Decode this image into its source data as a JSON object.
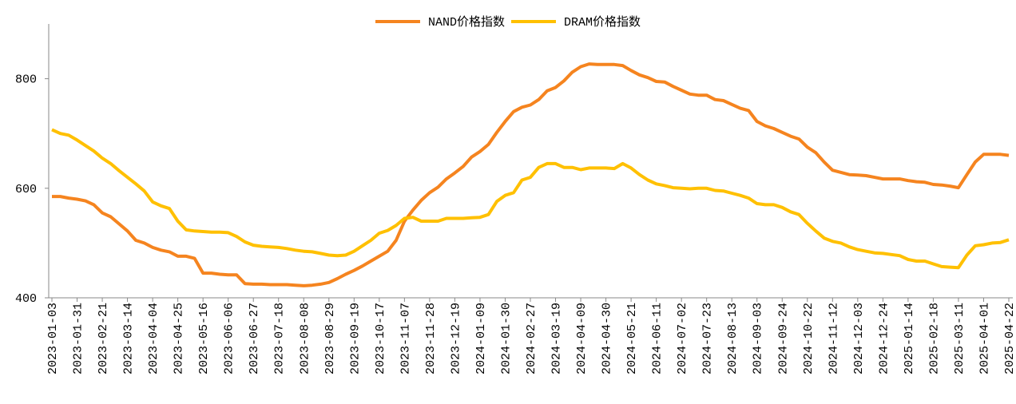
{
  "chart_data": {
    "type": "line",
    "categories": [
      "2023-01-03",
      null,
      null,
      "2023-01-31",
      null,
      null,
      "2023-02-21",
      null,
      null,
      "2023-03-14",
      null,
      null,
      "2023-04-04",
      null,
      null,
      "2023-04-25",
      null,
      null,
      "2023-05-16",
      null,
      null,
      "2023-06-06",
      null,
      null,
      "2023-06-27",
      null,
      null,
      "2023-07-18",
      null,
      null,
      "2023-08-08",
      null,
      null,
      "2023-08-29",
      null,
      null,
      "2023-09-19",
      null,
      null,
      "2023-10-17",
      null,
      null,
      "2023-11-07",
      null,
      null,
      "2023-11-28",
      null,
      null,
      "2023-12-19",
      null,
      null,
      "2024-01-09",
      null,
      null,
      "2024-01-30",
      null,
      null,
      "2024-02-27",
      null,
      null,
      "2024-03-19",
      null,
      null,
      "2024-04-09",
      null,
      null,
      "2024-04-30",
      null,
      null,
      "2024-05-21",
      null,
      null,
      "2024-06-11",
      null,
      null,
      "2024-07-02",
      null,
      null,
      "2024-07-23",
      null,
      null,
      "2024-08-13",
      null,
      null,
      "2024-09-03",
      null,
      null,
      "2024-09-24",
      null,
      null,
      "2024-10-22",
      null,
      null,
      "2024-11-12",
      null,
      null,
      "2024-12-03",
      null,
      null,
      "2024-12-24",
      null,
      null,
      "2025-01-14",
      null,
      null,
      "2025-02-18",
      null,
      null,
      "2025-03-11",
      null,
      null,
      "2025-04-01",
      null,
      null,
      "2025-04-22"
    ],
    "series": [
      {
        "name": "NAND价格指数",
        "color": "#f5841f",
        "values": [
          585,
          585,
          582,
          580,
          577,
          570,
          555,
          548,
          535,
          522,
          505,
          500,
          492,
          487,
          484,
          476,
          476,
          472,
          445,
          445,
          443,
          442,
          442,
          426,
          425,
          425,
          424,
          424,
          424,
          423,
          422,
          423,
          425,
          428,
          435,
          443,
          450,
          458,
          467,
          476,
          485,
          505,
          540,
          560,
          578,
          592,
          602,
          617,
          628,
          640,
          657,
          667,
          680,
          702,
          722,
          740,
          748,
          752,
          762,
          778,
          784,
          796,
          812,
          822,
          827,
          826,
          826,
          826,
          824,
          815,
          807,
          802,
          795,
          794,
          786,
          779,
          772,
          770,
          770,
          762,
          760,
          753,
          746,
          742,
          722,
          714,
          709,
          702,
          695,
          690,
          675,
          665,
          648,
          633,
          629,
          625,
          624,
          623,
          620,
          617,
          617,
          617,
          614,
          612,
          611,
          607,
          606,
          604,
          601,
          625,
          648,
          662,
          662,
          662,
          660
        ]
      },
      {
        "name": "DRAM价格指数",
        "color": "#ffc000",
        "values": [
          707,
          700,
          697,
          688,
          678,
          668,
          655,
          645,
          632,
          620,
          608,
          595,
          575,
          568,
          563,
          540,
          524,
          522,
          521,
          520,
          520,
          519,
          512,
          502,
          496,
          494,
          493,
          492,
          490,
          487,
          485,
          484,
          481,
          478,
          477,
          478,
          485,
          495,
          505,
          518,
          523,
          532,
          545,
          547,
          540,
          540,
          540,
          545,
          545,
          545,
          546,
          547,
          552,
          576,
          587,
          592,
          615,
          620,
          638,
          645,
          645,
          638,
          638,
          634,
          637,
          637,
          637,
          636,
          645,
          637,
          625,
          615,
          608,
          605,
          601,
          600,
          599,
          600,
          600,
          596,
          595,
          591,
          587,
          582,
          572,
          570,
          570,
          565,
          557,
          552,
          536,
          522,
          509,
          503,
          500,
          493,
          488,
          485,
          482,
          481,
          479,
          477,
          470,
          467,
          467,
          462,
          457,
          456,
          455,
          478,
          495,
          497,
          500,
          501,
          506
        ]
      }
    ],
    "ylim": [
      400,
      900
    ],
    "yticks": [
      400,
      600,
      800
    ],
    "legend": "top"
  }
}
